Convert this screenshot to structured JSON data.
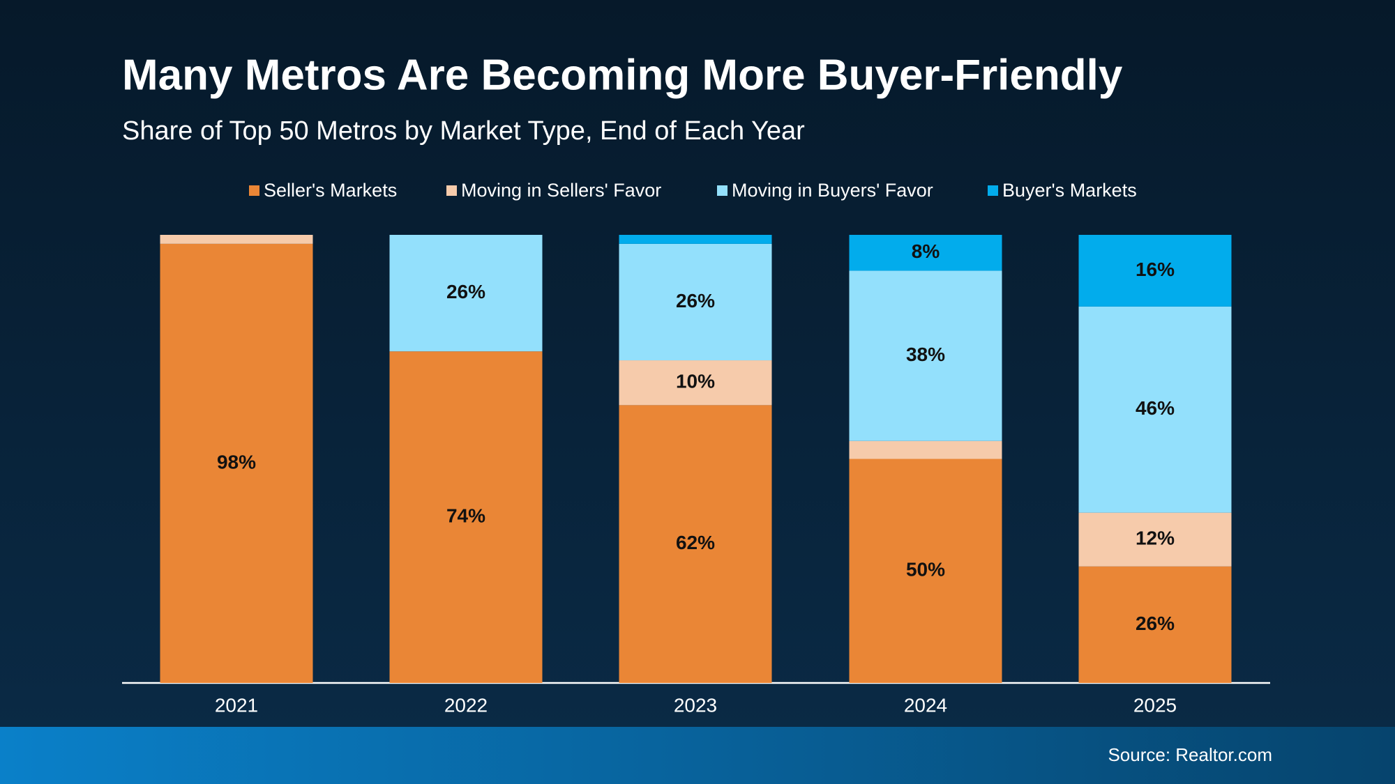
{
  "chart_data": {
    "type": "stacked_bar",
    "title": "Many Metros Are Becoming More Buyer-Friendly",
    "subtitle": "Share of Top 50 Metros by Market Type, End of Each Year",
    "source": "Source: Realtor.com",
    "categories": [
      "2021",
      "2022",
      "2023",
      "2024",
      "2025"
    ],
    "ylim": [
      0,
      100
    ],
    "legend": "top",
    "series": [
      {
        "name": "Seller's Markets",
        "color": "#ea8636",
        "values": [
          98,
          74,
          62,
          50,
          26
        ],
        "value_labels": [
          "98%",
          "74%",
          "62%",
          "50%",
          "26%"
        ]
      },
      {
        "name": "Moving in Sellers' Favor",
        "color": "#f6cbab",
        "values": [
          2,
          0,
          10,
          4,
          12
        ],
        "value_labels": [
          null,
          null,
          "10%",
          null,
          "12%"
        ]
      },
      {
        "name": "Moving in Buyers' Favor",
        "color": "#93e0fc",
        "values": [
          0,
          26,
          26,
          38,
          46
        ],
        "value_labels": [
          null,
          "26%",
          "26%",
          "38%",
          "46%"
        ]
      },
      {
        "name": "Buyer's Markets",
        "color": "#02acec",
        "values": [
          0,
          0,
          2,
          8,
          16
        ],
        "value_labels": [
          null,
          null,
          null,
          "8%",
          "16%"
        ]
      }
    ]
  }
}
